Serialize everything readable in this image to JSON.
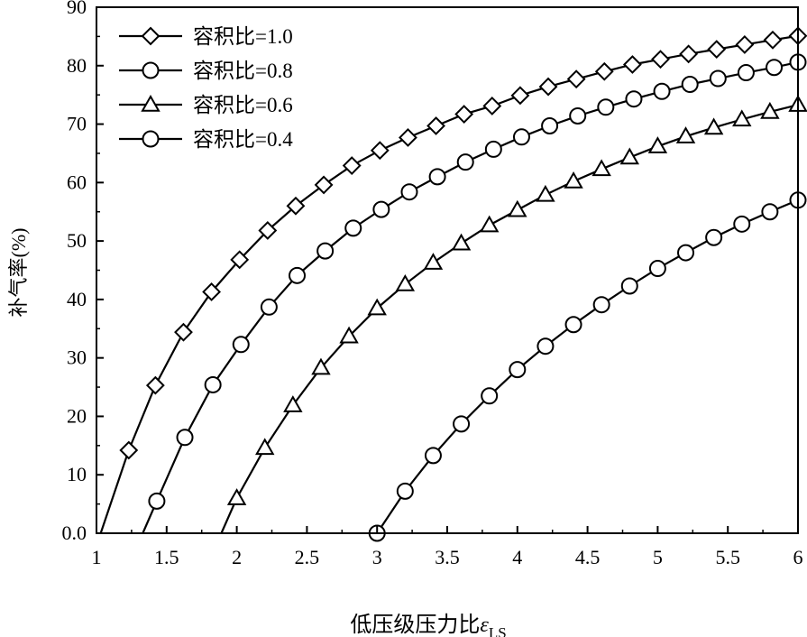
{
  "chart_data": {
    "type": "line",
    "title": "",
    "xlabel": "低压级压力比",
    "xlabel_symbol": "ε",
    "xlabel_subscript": "LS",
    "ylabel": "补气率(%)",
    "xlim": [
      1,
      6
    ],
    "ylim": [
      0,
      90
    ],
    "xticks": [
      "1",
      "1.5",
      "2",
      "2.5",
      "3",
      "3.5",
      "4",
      "4.5",
      "5",
      "5.5",
      "6"
    ],
    "yticks": [
      "0.0",
      "10",
      "20",
      "30",
      "40",
      "50",
      "60",
      "70",
      "80",
      "90"
    ],
    "grid": false,
    "legend_position": "top-left",
    "series": [
      {
        "name": "容积比=1.0",
        "marker": "diamond",
        "line_start": [
          1.03,
          0
        ],
        "x": [
          1.23,
          1.42,
          1.62,
          1.82,
          2.02,
          2.22,
          2.42,
          2.62,
          2.82,
          3.02,
          3.22,
          3.42,
          3.62,
          3.82,
          4.02,
          4.22,
          4.42,
          4.62,
          4.82,
          5.02,
          5.22,
          5.42,
          5.62,
          5.82,
          6.0
        ],
        "y": [
          14.2,
          25.3,
          34.4,
          41.3,
          46.8,
          51.8,
          56.0,
          59.6,
          62.9,
          65.5,
          67.7,
          69.7,
          71.7,
          73.1,
          74.9,
          76.4,
          77.7,
          79.0,
          80.2,
          81.1,
          82.0,
          82.8,
          83.6,
          84.4,
          85.1
        ]
      },
      {
        "name": "容积比=0.8",
        "marker": "circle",
        "line_start": [
          1.33,
          0
        ],
        "x": [
          1.43,
          1.63,
          1.83,
          2.03,
          2.23,
          2.43,
          2.63,
          2.83,
          3.03,
          3.23,
          3.43,
          3.63,
          3.83,
          4.03,
          4.23,
          4.43,
          4.63,
          4.83,
          5.03,
          5.23,
          5.43,
          5.63,
          5.83,
          6.0
        ],
        "y": [
          5.5,
          16.4,
          25.4,
          32.3,
          38.7,
          44.1,
          48.3,
          52.2,
          55.4,
          58.4,
          61.0,
          63.5,
          65.7,
          67.8,
          69.7,
          71.4,
          72.9,
          74.3,
          75.6,
          76.8,
          77.8,
          78.8,
          79.7,
          80.6
        ]
      },
      {
        "name": "容积比=0.6",
        "marker": "triangle",
        "line_start": [
          1.89,
          0
        ],
        "x": [
          2.0,
          2.2,
          2.4,
          2.6,
          2.8,
          3.0,
          3.2,
          3.4,
          3.6,
          3.8,
          4.0,
          4.2,
          4.4,
          4.6,
          4.8,
          5.0,
          5.2,
          5.4,
          5.6,
          5.8,
          6.0
        ],
        "y": [
          6.0,
          14.6,
          21.9,
          28.3,
          33.7,
          38.5,
          42.6,
          46.3,
          49.6,
          52.7,
          55.3,
          57.9,
          60.2,
          62.3,
          64.3,
          66.2,
          67.9,
          69.4,
          70.8,
          72.1,
          73.3
        ]
      },
      {
        "name": "容积比=0.4",
        "marker": "circle",
        "line_start": [
          2.98,
          0
        ],
        "x": [
          3.0,
          3.2,
          3.4,
          3.6,
          3.8,
          4.0,
          4.2,
          4.4,
          4.6,
          4.8,
          5.0,
          5.2,
          5.4,
          5.6,
          5.8,
          6.0
        ],
        "y": [
          0.0,
          7.2,
          13.3,
          18.7,
          23.5,
          28.0,
          32.0,
          35.7,
          39.1,
          42.3,
          45.3,
          48.0,
          50.6,
          52.9,
          55.0,
          57.0
        ]
      }
    ]
  }
}
